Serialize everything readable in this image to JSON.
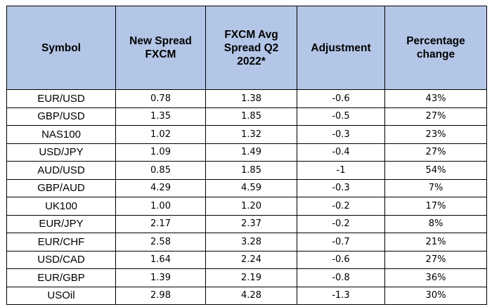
{
  "table": {
    "headers": [
      [
        "Symbol"
      ],
      [
        "New Spread",
        "FXCM"
      ],
      [
        "FXCM Avg",
        "Spread Q2",
        "2022*"
      ],
      [
        "Adjustment"
      ],
      [
        "Percentage",
        "change"
      ]
    ],
    "rows": [
      [
        "EUR/USD",
        "0.78",
        "1.38",
        "-0.6",
        "43%"
      ],
      [
        "GBP/USD",
        "1.35",
        "1.85",
        "-0.5",
        "27%"
      ],
      [
        "NAS100",
        "1.02",
        "1.32",
        "-0.3",
        "23%"
      ],
      [
        "USD/JPY",
        "1.09",
        "1.49",
        "-0.4",
        "27%"
      ],
      [
        "AUD/USD",
        "0.85",
        "1.85",
        "-1",
        "54%"
      ],
      [
        "GBP/AUD",
        "4.29",
        "4.59",
        "-0.3",
        "7%"
      ],
      [
        "UK100",
        "1.00",
        "1.20",
        "-0.2",
        "17%"
      ],
      [
        "EUR/JPY",
        "2.17",
        "2.37",
        "-0.2",
        "8%"
      ],
      [
        "EUR/CHF",
        "2.58",
        "3.28",
        "-0.7",
        "21%"
      ],
      [
        "USD/CAD",
        "1.64",
        "2.24",
        "-0.6",
        "27%"
      ],
      [
        "EUR/GBP",
        "1.39",
        "2.19",
        "-0.8",
        "36%"
      ],
      [
        "USOil",
        "2.98",
        "4.28",
        "-1.3",
        "30%"
      ]
    ],
    "colors": {
      "header_background": "#b4c6e7",
      "border": "#000000",
      "text": "#000000"
    }
  }
}
